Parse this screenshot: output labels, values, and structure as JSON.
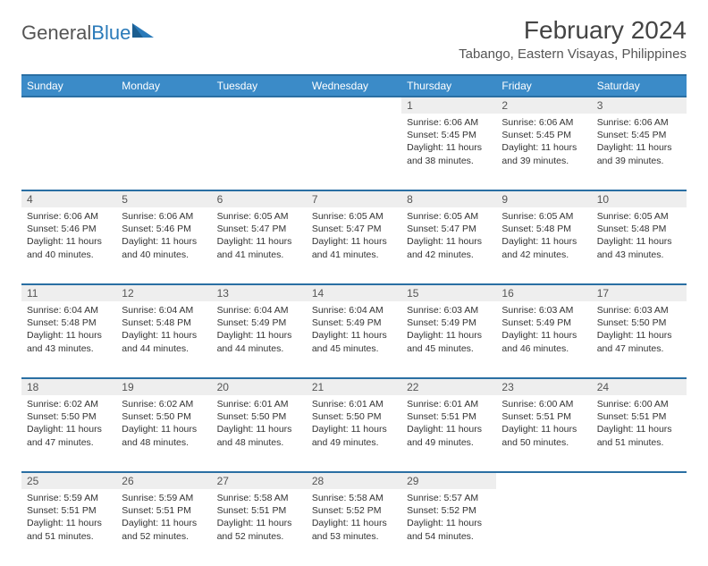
{
  "brand": {
    "part1": "General",
    "part2": "Blue"
  },
  "title": "February 2024",
  "subtitle": "Tabango, Eastern Visayas, Philippines",
  "colors": {
    "header_bg": "#3b8bc8",
    "header_border": "#2a6fa3",
    "daynum_bg": "#eeeeee",
    "text": "#333333",
    "brand_blue": "#2a7ab9"
  },
  "day_headers": [
    "Sunday",
    "Monday",
    "Tuesday",
    "Wednesday",
    "Thursday",
    "Friday",
    "Saturday"
  ],
  "weeks": [
    [
      null,
      null,
      null,
      null,
      {
        "n": "1",
        "sr": "6:06 AM",
        "ss": "5:45 PM",
        "dl": "11 hours and 38 minutes."
      },
      {
        "n": "2",
        "sr": "6:06 AM",
        "ss": "5:45 PM",
        "dl": "11 hours and 39 minutes."
      },
      {
        "n": "3",
        "sr": "6:06 AM",
        "ss": "5:45 PM",
        "dl": "11 hours and 39 minutes."
      }
    ],
    [
      {
        "n": "4",
        "sr": "6:06 AM",
        "ss": "5:46 PM",
        "dl": "11 hours and 40 minutes."
      },
      {
        "n": "5",
        "sr": "6:06 AM",
        "ss": "5:46 PM",
        "dl": "11 hours and 40 minutes."
      },
      {
        "n": "6",
        "sr": "6:05 AM",
        "ss": "5:47 PM",
        "dl": "11 hours and 41 minutes."
      },
      {
        "n": "7",
        "sr": "6:05 AM",
        "ss": "5:47 PM",
        "dl": "11 hours and 41 minutes."
      },
      {
        "n": "8",
        "sr": "6:05 AM",
        "ss": "5:47 PM",
        "dl": "11 hours and 42 minutes."
      },
      {
        "n": "9",
        "sr": "6:05 AM",
        "ss": "5:48 PM",
        "dl": "11 hours and 42 minutes."
      },
      {
        "n": "10",
        "sr": "6:05 AM",
        "ss": "5:48 PM",
        "dl": "11 hours and 43 minutes."
      }
    ],
    [
      {
        "n": "11",
        "sr": "6:04 AM",
        "ss": "5:48 PM",
        "dl": "11 hours and 43 minutes."
      },
      {
        "n": "12",
        "sr": "6:04 AM",
        "ss": "5:48 PM",
        "dl": "11 hours and 44 minutes."
      },
      {
        "n": "13",
        "sr": "6:04 AM",
        "ss": "5:49 PM",
        "dl": "11 hours and 44 minutes."
      },
      {
        "n": "14",
        "sr": "6:04 AM",
        "ss": "5:49 PM",
        "dl": "11 hours and 45 minutes."
      },
      {
        "n": "15",
        "sr": "6:03 AM",
        "ss": "5:49 PM",
        "dl": "11 hours and 45 minutes."
      },
      {
        "n": "16",
        "sr": "6:03 AM",
        "ss": "5:49 PM",
        "dl": "11 hours and 46 minutes."
      },
      {
        "n": "17",
        "sr": "6:03 AM",
        "ss": "5:50 PM",
        "dl": "11 hours and 47 minutes."
      }
    ],
    [
      {
        "n": "18",
        "sr": "6:02 AM",
        "ss": "5:50 PM",
        "dl": "11 hours and 47 minutes."
      },
      {
        "n": "19",
        "sr": "6:02 AM",
        "ss": "5:50 PM",
        "dl": "11 hours and 48 minutes."
      },
      {
        "n": "20",
        "sr": "6:01 AM",
        "ss": "5:50 PM",
        "dl": "11 hours and 48 minutes."
      },
      {
        "n": "21",
        "sr": "6:01 AM",
        "ss": "5:50 PM",
        "dl": "11 hours and 49 minutes."
      },
      {
        "n": "22",
        "sr": "6:01 AM",
        "ss": "5:51 PM",
        "dl": "11 hours and 49 minutes."
      },
      {
        "n": "23",
        "sr": "6:00 AM",
        "ss": "5:51 PM",
        "dl": "11 hours and 50 minutes."
      },
      {
        "n": "24",
        "sr": "6:00 AM",
        "ss": "5:51 PM",
        "dl": "11 hours and 51 minutes."
      }
    ],
    [
      {
        "n": "25",
        "sr": "5:59 AM",
        "ss": "5:51 PM",
        "dl": "11 hours and 51 minutes."
      },
      {
        "n": "26",
        "sr": "5:59 AM",
        "ss": "5:51 PM",
        "dl": "11 hours and 52 minutes."
      },
      {
        "n": "27",
        "sr": "5:58 AM",
        "ss": "5:51 PM",
        "dl": "11 hours and 52 minutes."
      },
      {
        "n": "28",
        "sr": "5:58 AM",
        "ss": "5:52 PM",
        "dl": "11 hours and 53 minutes."
      },
      {
        "n": "29",
        "sr": "5:57 AM",
        "ss": "5:52 PM",
        "dl": "11 hours and 54 minutes."
      },
      null,
      null
    ]
  ],
  "labels": {
    "sunrise": "Sunrise:",
    "sunset": "Sunset:",
    "daylight": "Daylight:"
  }
}
